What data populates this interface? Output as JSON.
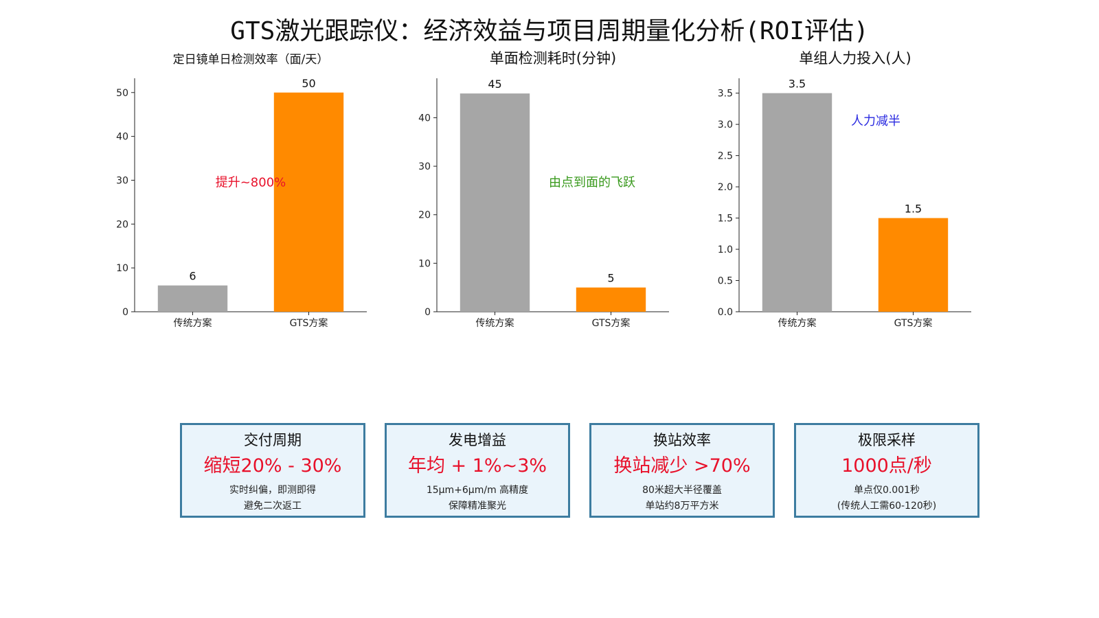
{
  "title": "GTS激光跟踪仪：经济效益与项目周期量化分析(ROI评估)",
  "colors": {
    "traditional": "#a6a6a6",
    "gts": "#ff8a00",
    "card_border": "#3d7ca0",
    "card_bg": "#eaf4fb",
    "highlight": "#e8102a"
  },
  "chart_data": [
    {
      "type": "bar",
      "title": "定日镜单日检测效率（面/天）",
      "categories": [
        "传统方案",
        "GTS方案"
      ],
      "values": [
        6,
        50
      ],
      "data_labels": [
        "6",
        "50"
      ],
      "ylim": [
        0,
        52
      ],
      "yticks": [
        0,
        10,
        20,
        30,
        40,
        50
      ],
      "ytick_labels": [
        "0",
        "10",
        "20",
        "30",
        "40",
        "50"
      ],
      "grid": false,
      "annotation": {
        "text": "提升~800%",
        "color": "#e8102a"
      }
    },
    {
      "type": "bar",
      "title": "单面检测耗时(分钟)",
      "categories": [
        "传统方案",
        "GTS方案"
      ],
      "values": [
        45,
        5
      ],
      "data_labels": [
        "45",
        "5"
      ],
      "ylim": [
        0,
        47
      ],
      "yticks": [
        0,
        10,
        20,
        30,
        40
      ],
      "ytick_labels": [
        "0",
        "10",
        "20",
        "30",
        "40"
      ],
      "grid": false,
      "annotation": {
        "text": "由点到面的飞跃",
        "color": "#3a9a1e"
      }
    },
    {
      "type": "bar",
      "title": "单组人力投入(人)",
      "categories": [
        "传统方案",
        "GTS方案"
      ],
      "values": [
        3.5,
        1.5
      ],
      "data_labels": [
        "3.5",
        "1.5"
      ],
      "ylim": [
        0,
        3.65
      ],
      "yticks": [
        0,
        0.5,
        1,
        1.5,
        2,
        2.5,
        3,
        3.5
      ],
      "ytick_labels": [
        "0.0",
        "0.5",
        "1.0",
        "1.5",
        "2.0",
        "2.5",
        "3.0",
        "3.5"
      ],
      "grid": false,
      "annotation": {
        "text": "人力减半",
        "color": "#2a2ae0"
      }
    }
  ],
  "cards": [
    {
      "title": "交付周期",
      "value": "缩短20% - 30%",
      "desc1": "实时纠偏，即测即得",
      "desc2": "避免二次返工"
    },
    {
      "title": "发电增益",
      "value": "年均 + 1%~3%",
      "desc1": "15μm+6μm/m 高精度",
      "desc2": "保障精准聚光"
    },
    {
      "title": "换站效率",
      "value": "换站减少 >70%",
      "desc1": "80米超大半径覆盖",
      "desc2": "单站约8万平方米"
    },
    {
      "title": "极限采样",
      "value": "1000点/秒",
      "desc1": "单点仅0.001秒",
      "desc2": "(传统人工需60-120秒)"
    }
  ]
}
